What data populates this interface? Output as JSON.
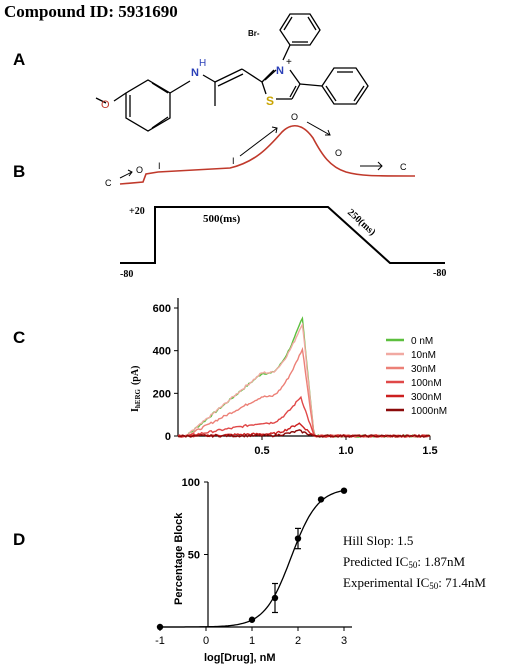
{
  "figure_title": "Compound ID: 5931690",
  "panels": {
    "A": {
      "label": "A",
      "counterion": "Br-",
      "atoms": {
        "nh": "H",
        "n_plus": "N",
        "plus": "+",
        "sulfur": "S",
        "oxygen": "O"
      }
    },
    "B": {
      "label": "B",
      "states": {
        "c_start": "C",
        "o_early": "O",
        "i_first": "I",
        "i_second": "I",
        "o_peak": "O",
        "o_decay": "O",
        "c_end": "C"
      },
      "protocol": {
        "holding_left": "-80",
        "step_voltage": "+20",
        "step_duration": "500(ms)",
        "ramp_duration": "250(ms)",
        "holding_right": "-80"
      }
    },
    "C": {
      "label": "C"
    },
    "D": {
      "label": "D",
      "annotations": {
        "hill": "Hill Slop: 1.5",
        "predicted_prefix": "Predicted IC",
        "predicted_sub": "50",
        "predicted_value": ": 1.87nM",
        "experimental_prefix": "Experimental IC",
        "experimental_sub": "50",
        "experimental_value": ": 71.4nM"
      }
    }
  },
  "chart_data": [
    {
      "type": "line",
      "panel": "C",
      "ylabel_main": "I",
      "ylabel_sub": "hERG",
      "ylabel_unit": "(pA)",
      "xlabel": "",
      "xlim": [
        0,
        1.5
      ],
      "ylim": [
        0,
        600
      ],
      "x_ticks": [
        "0.5",
        "1.0",
        "1.5"
      ],
      "y_ticks": [
        "0",
        "200",
        "400",
        "600"
      ],
      "legend_position": "right",
      "series": [
        {
          "name": "0 nM",
          "color": "#5cbf3e",
          "peak_x": 0.74,
          "peak_y": 555,
          "plateau": 0.53
        },
        {
          "name": "10nM",
          "color": "#f1a9a2",
          "peak_x": 0.74,
          "peak_y": 530,
          "plateau": 0.56
        },
        {
          "name": "30nM",
          "color": "#ec8077",
          "peak_x": 0.74,
          "peak_y": 410,
          "plateau": 0.45
        },
        {
          "name": "100nM",
          "color": "#e04848",
          "peak_x": 0.73,
          "peak_y": 185,
          "plateau": 0.33
        },
        {
          "name": "300nM",
          "color": "#cc1f1f",
          "peak_x": 0.72,
          "peak_y": 60,
          "plateau": 0.16
        },
        {
          "name": "1000nM",
          "color": "#8b0a0a",
          "peak_x": 0.72,
          "peak_y": 25,
          "plateau": 0.07
        }
      ]
    },
    {
      "type": "scatter",
      "panel": "D",
      "xlabel": "log[Drug], nM",
      "ylabel": "Percentage Block",
      "xlim": [
        -1,
        3
      ],
      "ylim": [
        0,
        100
      ],
      "x_ticks": [
        "-1",
        "0",
        "1",
        "2",
        "3"
      ],
      "y_ticks": [
        "50",
        "100"
      ],
      "fit_curve": "sigmoid",
      "points": [
        {
          "x": -1,
          "y": 0,
          "err": 0
        },
        {
          "x": 1,
          "y": 5,
          "err": 0
        },
        {
          "x": 1.5,
          "y": 20,
          "err": 10
        },
        {
          "x": 2,
          "y": 61,
          "err": 7
        },
        {
          "x": 2.5,
          "y": 88,
          "err": 0
        },
        {
          "x": 3,
          "y": 94,
          "err": 0
        }
      ]
    }
  ]
}
